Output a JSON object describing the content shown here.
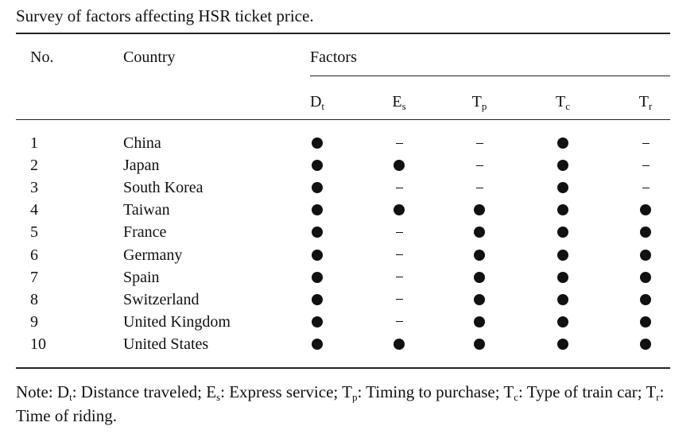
{
  "caption": "Survey of factors affecting HSR ticket price.",
  "headers": {
    "no": "No.",
    "country": "Country",
    "factors": "Factors"
  },
  "factors": [
    {
      "key": "D",
      "sub": "t"
    },
    {
      "key": "E",
      "sub": "s"
    },
    {
      "key": "T",
      "sub": "p"
    },
    {
      "key": "T",
      "sub": "c"
    },
    {
      "key": "T",
      "sub": "r"
    }
  ],
  "rows": [
    {
      "no": "1",
      "country": "China",
      "marks": [
        1,
        0,
        0,
        1,
        0
      ]
    },
    {
      "no": "2",
      "country": "Japan",
      "marks": [
        1,
        1,
        0,
        1,
        0
      ]
    },
    {
      "no": "3",
      "country": "South Korea",
      "marks": [
        1,
        0,
        0,
        1,
        0
      ]
    },
    {
      "no": "4",
      "country": "Taiwan",
      "marks": [
        1,
        1,
        1,
        1,
        1
      ]
    },
    {
      "no": "5",
      "country": "France",
      "marks": [
        1,
        0,
        1,
        1,
        1
      ]
    },
    {
      "no": "6",
      "country": "Germany",
      "marks": [
        1,
        0,
        1,
        1,
        1
      ]
    },
    {
      "no": "7",
      "country": "Spain",
      "marks": [
        1,
        0,
        1,
        1,
        1
      ]
    },
    {
      "no": "8",
      "country": "Switzerland",
      "marks": [
        1,
        0,
        1,
        1,
        1
      ]
    },
    {
      "no": "9",
      "country": "United Kingdom",
      "marks": [
        1,
        0,
        1,
        1,
        1
      ]
    },
    {
      "no": "10",
      "country": "United States",
      "marks": [
        1,
        1,
        1,
        1,
        1
      ]
    }
  ],
  "note": {
    "prefix": "Note: ",
    "items": [
      {
        "key": "D",
        "sub": "t",
        "desc": ": Distance traveled; "
      },
      {
        "key": "E",
        "sub": "s",
        "desc": ": Express service; "
      },
      {
        "key": "T",
        "sub": "p",
        "desc": ": Timing to purchase; "
      },
      {
        "key": "T",
        "sub": "c",
        "desc": ": Type of train car; "
      },
      {
        "key": "T",
        "sub": "r",
        "desc": ": Time of riding."
      }
    ]
  }
}
